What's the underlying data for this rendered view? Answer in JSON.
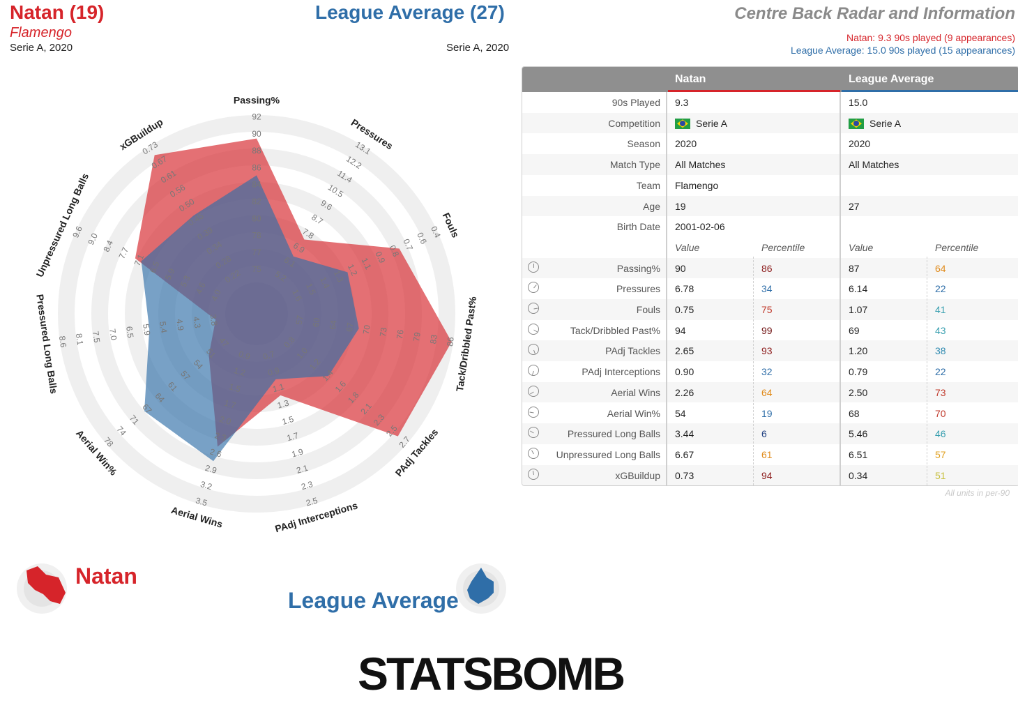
{
  "header": {
    "player_name": "Natan (19)",
    "player_team": "Flamengo",
    "player_season": "Serie A, 2020",
    "compare_name": "League Average (27)",
    "compare_season": "Serie A, 2020",
    "title": "Centre Back Radar and Information",
    "subtitle_player": "Natan: 9.3 90s played (9 appearances)",
    "subtitle_compare": "League Average: 15.0 90s played (15 appearances)"
  },
  "colors": {
    "player": "#d6242a",
    "compare": "#2f6ea8"
  },
  "table": {
    "col_player": "Natan",
    "col_compare": "League Average",
    "info_rows": [
      {
        "label": "90s Played",
        "p": "9.3",
        "c": "15.0"
      },
      {
        "label": "Competition",
        "p": "Serie A",
        "c": "Serie A"
      },
      {
        "label": "Season",
        "p": "2020",
        "c": "2020"
      },
      {
        "label": "Match Type",
        "p": "All Matches",
        "c": "All Matches"
      },
      {
        "label": "Team",
        "p": "Flamengo",
        "c": ""
      },
      {
        "label": "Age",
        "p": "19",
        "c": "27"
      },
      {
        "label": "Birth Date",
        "p": "2001-02-06",
        "c": ""
      }
    ],
    "subheader": {
      "value": "Value",
      "percentile": "Percentile"
    },
    "stat_rows": [
      {
        "label": "Passing%",
        "pv": "90",
        "pp": "86",
        "cv": "87",
        "cp": "64",
        "ppc": "#8b1a1a",
        "cpc": "#e08a1a"
      },
      {
        "label": "Pressures",
        "pv": "6.78",
        "pp": "34",
        "cv": "6.14",
        "cp": "22",
        "ppc": "#2f6ea8",
        "cpc": "#2f6ea8"
      },
      {
        "label": "Fouls",
        "pv": "0.75",
        "pp": "75",
        "cv": "1.07",
        "cp": "41",
        "ppc": "#c0392b",
        "cpc": "#3aa0b0"
      },
      {
        "label": "Tack/Dribbled Past%",
        "pv": "94",
        "pp": "99",
        "cv": "69",
        "cp": "43",
        "ppc": "#6e1010",
        "cpc": "#3aa0b0"
      },
      {
        "label": "PAdj Tackles",
        "pv": "2.65",
        "pp": "93",
        "cv": "1.20",
        "cp": "38",
        "ppc": "#8b1a1a",
        "cpc": "#2f8ab0"
      },
      {
        "label": "PAdj Interceptions",
        "pv": "0.90",
        "pp": "32",
        "cv": "0.79",
        "cp": "22",
        "ppc": "#2f6ea8",
        "cpc": "#2f6ea8"
      },
      {
        "label": "Aerial Wins",
        "pv": "2.26",
        "pp": "64",
        "cv": "2.50",
        "cp": "73",
        "ppc": "#e08a1a",
        "cpc": "#c0392b"
      },
      {
        "label": "Aerial Win%",
        "pv": "54",
        "pp": "19",
        "cv": "68",
        "cp": "70",
        "ppc": "#2f6ea8",
        "cpc": "#c0392b"
      },
      {
        "label": "Pressured Long Balls",
        "pv": "3.44",
        "pp": "6",
        "cv": "5.46",
        "cp": "46",
        "ppc": "#1f3f80",
        "cpc": "#3aa0b0"
      },
      {
        "label": "Unpressured Long Balls",
        "pv": "6.67",
        "pp": "61",
        "cv": "6.51",
        "cp": "57",
        "ppc": "#e08a1a",
        "cpc": "#e0a020"
      },
      {
        "label": "xGBuildup",
        "pv": "0.73",
        "pp": "94",
        "cv": "0.34",
        "cp": "51",
        "ppc": "#8b1a1a",
        "cpc": "#c8c040"
      }
    ],
    "units_note": "All units in per-90"
  },
  "legend": {
    "player_label": "Natan",
    "compare_label": "League Average"
  },
  "logo_text": "STATSBOMB",
  "chart_data": {
    "type": "radar",
    "axes": [
      {
        "name": "Passing%",
        "ticks": [
          "75",
          "77",
          "78",
          "80",
          "82",
          "84",
          "86",
          "88",
          "90",
          "92"
        ]
      },
      {
        "name": "Pressures",
        "ticks": [
          "5.2",
          "6.1",
          "6.9",
          "7.8",
          "8.7",
          "9.6",
          "10.5",
          "11.4",
          "12.2",
          "13.1"
        ]
      },
      {
        "name": "Fouls",
        "ticks": [
          "1.6",
          "1.5",
          "1.4",
          "1.3",
          "1.2",
          "1.1",
          "0.9",
          "0.8",
          "0.7",
          "0.6",
          "0.4"
        ]
      },
      {
        "name": "Tack/Dribbled Past%",
        "ticks": [
          "57",
          "60",
          "64",
          "67",
          "70",
          "73",
          "76",
          "79",
          "83",
          "86"
        ]
      },
      {
        "name": "PAdj Tackles",
        "ticks": [
          "0.8",
          "1.0",
          "1.2",
          "1.4",
          "1.6",
          "1.8",
          "2.1",
          "2.3",
          "2.5",
          "2.7"
        ]
      },
      {
        "name": "PAdj Interceptions",
        "ticks": [
          "0.7",
          "0.9",
          "1.1",
          "1.3",
          "1.5",
          "1.7",
          "1.9",
          "2.1",
          "2.3",
          "2.5"
        ]
      },
      {
        "name": "Aerial Wins",
        "ticks": [
          "0.9",
          "1.2",
          "1.5",
          "1.7",
          "2.0",
          "2.3",
          "2.6",
          "2.9",
          "3.2",
          "3.5"
        ]
      },
      {
        "name": "Aerial Win%",
        "ticks": [
          "47",
          "51",
          "54",
          "57",
          "61",
          "64",
          "67",
          "71",
          "74",
          "78"
        ]
      },
      {
        "name": "Pressured Long Balls",
        "ticks": [
          "3.8",
          "4.3",
          "4.9",
          "5.4",
          "5.9",
          "6.5",
          "7.0",
          "7.5",
          "8.1",
          "8.6"
        ]
      },
      {
        "name": "Unpressured Long Balls",
        "ticks": [
          "4.0",
          "4.6",
          "5.3",
          "5.9",
          "6.5",
          "7.1",
          "7.7",
          "8.4",
          "9.0",
          "9.6"
        ]
      },
      {
        "name": "xGBuildup",
        "ticks": [
          "0.22",
          "0.28",
          "0.34",
          "0.39",
          "0.45",
          "0.50",
          "0.56",
          "0.61",
          "0.67",
          "0.73"
        ]
      }
    ],
    "series": [
      {
        "name": "Natan",
        "color": "#d6242a",
        "percentiles": [
          86,
          34,
          75,
          99,
          93,
          32,
          64,
          19,
          6,
          61,
          94
        ]
      },
      {
        "name": "League Average",
        "color": "#2f6ea8",
        "percentiles": [
          64,
          22,
          41,
          43,
          38,
          22,
          73,
          70,
          46,
          57,
          51
        ]
      }
    ],
    "range": [
      0,
      100
    ]
  }
}
